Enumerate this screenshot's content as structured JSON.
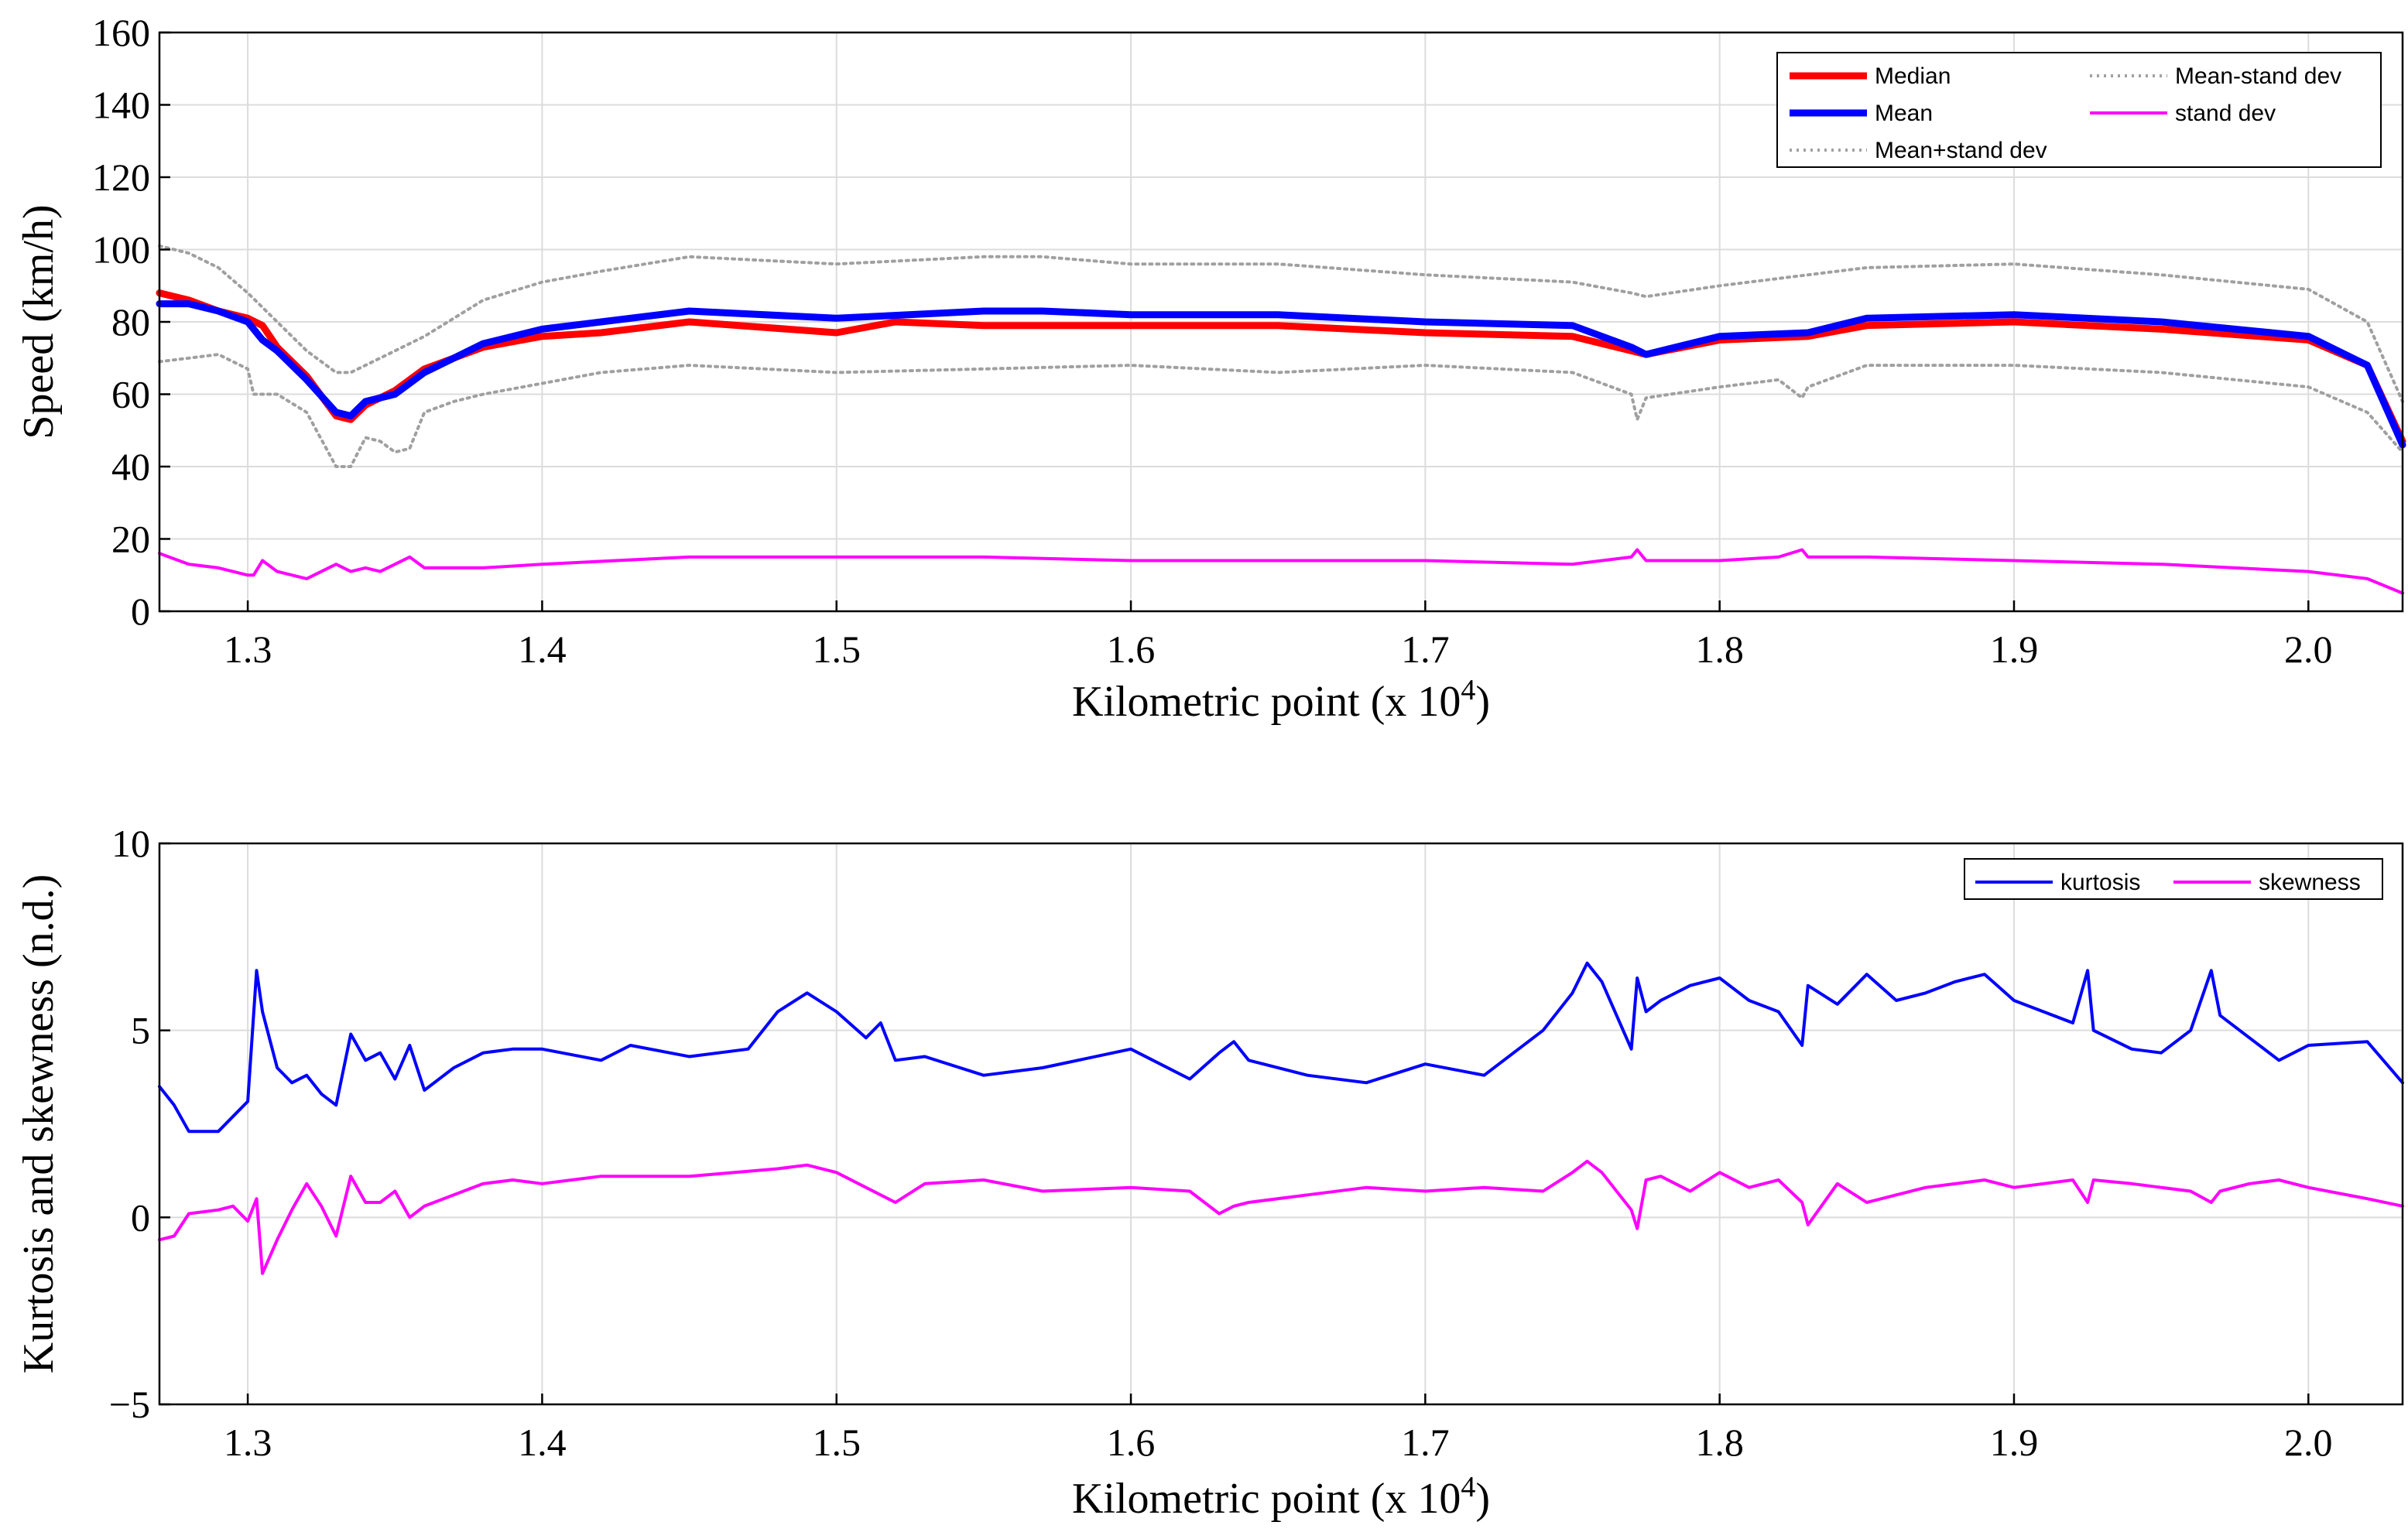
{
  "chart_data": [
    {
      "type": "line",
      "xlabel": "Kilometric point (x 10",
      "xlabel_exp": "4",
      "xlabel_close": ")",
      "ylabel": "Speed (km/h)",
      "xlim": [
        1.27,
        2.032
      ],
      "ylim": [
        0,
        160
      ],
      "xticks": [
        1.3,
        1.4,
        1.5,
        1.6,
        1.7,
        1.8,
        1.9,
        2.0
      ],
      "xtick_labels": [
        "1.3",
        "1.4",
        "1.5",
        "1.6",
        "1.7",
        "1.8",
        "1.9",
        "2.0"
      ],
      "yticks": [
        0,
        20,
        40,
        60,
        80,
        100,
        120,
        140,
        160
      ],
      "ytick_labels": [
        "0",
        "20",
        "40",
        "60",
        "80",
        "100",
        "120",
        "140",
        "160"
      ],
      "grid": true,
      "legend_position": "top-right",
      "series": [
        {
          "name": "Mean+stand dev",
          "color": "#a0a0a0",
          "style": "dotted",
          "x": [
            1.27,
            1.28,
            1.29,
            1.3,
            1.31,
            1.32,
            1.33,
            1.335,
            1.34,
            1.35,
            1.36,
            1.37,
            1.38,
            1.4,
            1.42,
            1.45,
            1.5,
            1.55,
            1.57,
            1.6,
            1.65,
            1.7,
            1.75,
            1.77,
            1.775,
            1.8,
            1.83,
            1.85,
            1.9,
            1.95,
            2.0,
            2.02,
            2.032
          ],
          "y": [
            101,
            99,
            95,
            88,
            80,
            72,
            66,
            66,
            68,
            72,
            76,
            81,
            86,
            91,
            94,
            98,
            96,
            98,
            98,
            96,
            96,
            93,
            91,
            88,
            87,
            90,
            93,
            95,
            96,
            93,
            89,
            80,
            58
          ]
        },
        {
          "name": "Median",
          "color": "#ff0000",
          "style": "solid",
          "x": [
            1.27,
            1.28,
            1.29,
            1.3,
            1.305,
            1.31,
            1.32,
            1.33,
            1.335,
            1.34,
            1.35,
            1.36,
            1.37,
            1.38,
            1.4,
            1.42,
            1.45,
            1.5,
            1.52,
            1.55,
            1.6,
            1.65,
            1.7,
            1.75,
            1.77,
            1.775,
            1.8,
            1.83,
            1.85,
            1.9,
            1.95,
            2.0,
            2.02,
            2.032
          ],
          "y": [
            88,
            86,
            83,
            81,
            79,
            73,
            65,
            54,
            53,
            57,
            61,
            67,
            70,
            73,
            76,
            77,
            80,
            77,
            80,
            79,
            79,
            79,
            77,
            76,
            72,
            71,
            75,
            76,
            79,
            80,
            78,
            75,
            68,
            47
          ]
        },
        {
          "name": "Mean",
          "color": "#0000ff",
          "style": "solid",
          "x": [
            1.27,
            1.28,
            1.29,
            1.3,
            1.305,
            1.31,
            1.32,
            1.33,
            1.335,
            1.34,
            1.35,
            1.36,
            1.37,
            1.38,
            1.4,
            1.42,
            1.45,
            1.5,
            1.55,
            1.57,
            1.6,
            1.65,
            1.7,
            1.75,
            1.77,
            1.775,
            1.8,
            1.83,
            1.85,
            1.9,
            1.95,
            2.0,
            2.02,
            2.032
          ],
          "y": [
            85,
            85,
            83,
            80,
            75,
            72,
            64,
            55,
            54,
            58,
            60,
            66,
            70,
            74,
            78,
            80,
            83,
            81,
            83,
            83,
            82,
            82,
            80,
            79,
            73,
            71,
            76,
            77,
            81,
            82,
            80,
            76,
            68,
            46
          ]
        },
        {
          "name": "Mean-stand dev",
          "color": "#a0a0a0",
          "style": "dotted",
          "x": [
            1.27,
            1.28,
            1.29,
            1.3,
            1.302,
            1.31,
            1.32,
            1.33,
            1.335,
            1.34,
            1.345,
            1.35,
            1.355,
            1.36,
            1.37,
            1.38,
            1.4,
            1.42,
            1.45,
            1.5,
            1.55,
            1.6,
            1.65,
            1.7,
            1.75,
            1.77,
            1.772,
            1.775,
            1.8,
            1.82,
            1.828,
            1.83,
            1.85,
            1.9,
            1.95,
            2.0,
            2.02,
            2.032
          ],
          "y": [
            69,
            70,
            71,
            67,
            60,
            60,
            55,
            40,
            40,
            48,
            47,
            44,
            45,
            55,
            58,
            60,
            63,
            66,
            68,
            66,
            67,
            68,
            66,
            68,
            66,
            60,
            53,
            59,
            62,
            64,
            59,
            62,
            68,
            68,
            66,
            62,
            55,
            44
          ]
        },
        {
          "name": "stand dev",
          "color": "#ff00ff",
          "style": "solid",
          "x": [
            1.27,
            1.28,
            1.29,
            1.3,
            1.302,
            1.305,
            1.31,
            1.32,
            1.33,
            1.335,
            1.34,
            1.345,
            1.35,
            1.355,
            1.36,
            1.38,
            1.4,
            1.45,
            1.5,
            1.55,
            1.6,
            1.65,
            1.7,
            1.75,
            1.77,
            1.772,
            1.775,
            1.8,
            1.82,
            1.828,
            1.83,
            1.85,
            1.9,
            1.95,
            2.0,
            2.02,
            2.032
          ],
          "y": [
            16,
            13,
            12,
            10,
            10,
            14,
            11,
            9,
            13,
            11,
            12,
            11,
            13,
            15,
            12,
            12,
            13,
            15,
            15,
            15,
            14,
            14,
            14,
            13,
            15,
            17,
            14,
            14,
            15,
            17,
            15,
            15,
            14,
            13,
            11,
            9,
            5
          ]
        }
      ],
      "legend": [
        "Median",
        "Mean-stand dev",
        "Mean",
        "stand dev",
        "Mean+stand dev"
      ]
    },
    {
      "type": "line",
      "xlabel": "Kilometric point (x 10",
      "xlabel_exp": "4",
      "xlabel_close": ")",
      "ylabel": "Kurtosis and skewness (n.d.)",
      "xlim": [
        1.27,
        2.032
      ],
      "ylim": [
        -5,
        10
      ],
      "xticks": [
        1.3,
        1.4,
        1.5,
        1.6,
        1.7,
        1.8,
        1.9,
        2.0
      ],
      "xtick_labels": [
        "1.3",
        "1.4",
        "1.5",
        "1.6",
        "1.7",
        "1.8",
        "1.9",
        "2.0"
      ],
      "yticks": [
        -5,
        0,
        5,
        10
      ],
      "ytick_labels": [
        "−5",
        "0",
        "5",
        "10"
      ],
      "grid": true,
      "legend_position": "top-right",
      "series": [
        {
          "name": "kurtosis",
          "color": "#0000ff",
          "style": "solid",
          "x": [
            1.27,
            1.275,
            1.28,
            1.29,
            1.295,
            1.3,
            1.303,
            1.305,
            1.31,
            1.315,
            1.32,
            1.325,
            1.33,
            1.335,
            1.34,
            1.345,
            1.35,
            1.355,
            1.36,
            1.37,
            1.38,
            1.39,
            1.4,
            1.42,
            1.43,
            1.45,
            1.47,
            1.48,
            1.49,
            1.5,
            1.51,
            1.515,
            1.52,
            1.53,
            1.55,
            1.57,
            1.6,
            1.62,
            1.63,
            1.635,
            1.64,
            1.66,
            1.68,
            1.7,
            1.72,
            1.74,
            1.75,
            1.755,
            1.76,
            1.77,
            1.772,
            1.775,
            1.78,
            1.79,
            1.8,
            1.81,
            1.82,
            1.828,
            1.83,
            1.84,
            1.85,
            1.86,
            1.87,
            1.88,
            1.89,
            1.9,
            1.91,
            1.92,
            1.925,
            1.927,
            1.94,
            1.95,
            1.96,
            1.967,
            1.97,
            1.98,
            1.99,
            2.0,
            2.02,
            2.032
          ],
          "y": [
            3.5,
            3.0,
            2.3,
            2.3,
            2.7,
            3.1,
            6.6,
            5.5,
            4.0,
            3.6,
            3.8,
            3.3,
            3.0,
            4.9,
            4.2,
            4.4,
            3.7,
            4.6,
            3.4,
            4.0,
            4.4,
            4.5,
            4.5,
            4.2,
            4.6,
            4.3,
            4.5,
            5.5,
            6.0,
            5.5,
            4.8,
            5.2,
            4.2,
            4.3,
            3.8,
            4.0,
            4.5,
            3.7,
            4.4,
            4.7,
            4.2,
            3.8,
            3.6,
            4.1,
            3.8,
            5.0,
            6.0,
            6.8,
            6.3,
            4.5,
            6.4,
            5.5,
            5.8,
            6.2,
            6.4,
            5.8,
            5.5,
            4.6,
            6.2,
            5.7,
            6.5,
            5.8,
            6.0,
            6.3,
            6.5,
            5.8,
            5.5,
            5.2,
            6.6,
            5.0,
            4.5,
            4.4,
            5.0,
            6.6,
            5.4,
            4.8,
            4.2,
            4.6,
            4.7,
            3.6
          ]
        },
        {
          "name": "skewness",
          "color": "#ff00ff",
          "style": "solid",
          "x": [
            1.27,
            1.275,
            1.28,
            1.29,
            1.295,
            1.3,
            1.303,
            1.305,
            1.31,
            1.315,
            1.32,
            1.325,
            1.33,
            1.335,
            1.34,
            1.345,
            1.35,
            1.355,
            1.36,
            1.37,
            1.38,
            1.39,
            1.4,
            1.42,
            1.45,
            1.48,
            1.49,
            1.5,
            1.51,
            1.52,
            1.53,
            1.55,
            1.57,
            1.6,
            1.62,
            1.63,
            1.635,
            1.64,
            1.66,
            1.68,
            1.7,
            1.72,
            1.74,
            1.75,
            1.755,
            1.76,
            1.77,
            1.772,
            1.775,
            1.78,
            1.79,
            1.8,
            1.81,
            1.82,
            1.828,
            1.83,
            1.84,
            1.85,
            1.87,
            1.89,
            1.9,
            1.92,
            1.925,
            1.927,
            1.94,
            1.95,
            1.96,
            1.967,
            1.97,
            1.98,
            1.99,
            2.0,
            2.02,
            2.032
          ],
          "y": [
            -0.6,
            -0.5,
            0.1,
            0.2,
            0.3,
            -0.1,
            0.5,
            -1.5,
            -0.6,
            0.2,
            0.9,
            0.3,
            -0.5,
            1.1,
            0.4,
            0.4,
            0.7,
            0.0,
            0.3,
            0.6,
            0.9,
            1.0,
            0.9,
            1.1,
            1.1,
            1.3,
            1.4,
            1.2,
            0.8,
            0.4,
            0.9,
            1.0,
            0.7,
            0.8,
            0.7,
            0.1,
            0.3,
            0.4,
            0.6,
            0.8,
            0.7,
            0.8,
            0.7,
            1.2,
            1.5,
            1.2,
            0.2,
            -0.3,
            1.0,
            1.1,
            0.7,
            1.2,
            0.8,
            1.0,
            0.4,
            -0.2,
            0.9,
            0.4,
            0.8,
            1.0,
            0.8,
            1.0,
            0.4,
            1.0,
            0.9,
            0.8,
            0.7,
            0.4,
            0.7,
            0.9,
            1.0,
            0.8,
            0.5,
            0.3
          ]
        }
      ],
      "legend": [
        "kurtosis",
        "skewness"
      ]
    }
  ]
}
